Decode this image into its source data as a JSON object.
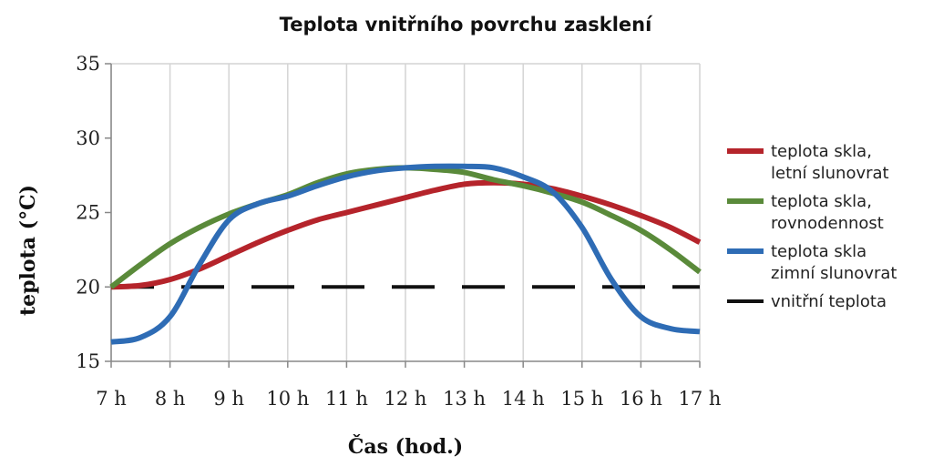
{
  "chart_data": {
    "type": "line",
    "title": "Teplota vnitřního povrchu zasklení",
    "xlabel": "Čas (hod.)",
    "ylabel": "teplota (°C)",
    "categories": [
      "7 h",
      "8 h",
      "9 h",
      "10 h",
      "11 h",
      "12 h",
      "13 h",
      "14 h",
      "15 h",
      "16 h",
      "17 h"
    ],
    "x": [
      7,
      8,
      9,
      10,
      11,
      12,
      13,
      14,
      15,
      16,
      17
    ],
    "yticks": [
      "15",
      "20",
      "25",
      "30",
      "35"
    ],
    "ylim": [
      15,
      35
    ],
    "grid": "vertical",
    "legend_position": "right",
    "series": [
      {
        "name_lines": [
          "teplota skla,",
          "letní slunovrat"
        ],
        "color": "#b5242b",
        "dashed": false,
        "x": [
          7,
          7.5,
          8,
          8.5,
          9,
          9.5,
          10,
          10.5,
          11,
          11.5,
          12,
          12.5,
          13,
          13.5,
          14,
          14.5,
          15,
          15.5,
          16,
          16.5,
          17
        ],
        "values": [
          20.0,
          20.1,
          20.5,
          21.2,
          22.1,
          23.0,
          23.8,
          24.5,
          25.0,
          25.5,
          26.0,
          26.5,
          26.9,
          27.0,
          26.9,
          26.6,
          26.1,
          25.5,
          24.8,
          24.0,
          23.0
        ]
      },
      {
        "name_lines": [
          "teplota skla,",
          "rovnodennost"
        ],
        "color": "#5a8a3a",
        "dashed": false,
        "x": [
          7,
          7.5,
          8,
          8.5,
          9,
          9.5,
          10,
          10.5,
          11,
          11.5,
          12,
          12.5,
          13,
          13.5,
          14,
          14.5,
          15,
          15.5,
          16,
          16.5,
          17
        ],
        "values": [
          20.0,
          21.5,
          22.9,
          24.0,
          24.9,
          25.6,
          26.2,
          27.0,
          27.6,
          27.9,
          28.0,
          27.9,
          27.7,
          27.2,
          26.8,
          26.3,
          25.7,
          24.8,
          23.8,
          22.5,
          21.0
        ]
      },
      {
        "name_lines": [
          "teplota skla",
          "zimní slunovrat"
        ],
        "color": "#2e6cb5",
        "dashed": false,
        "x": [
          7,
          7.5,
          8,
          8.5,
          9,
          9.5,
          10,
          10.5,
          11,
          11.5,
          12,
          12.5,
          13,
          13.5,
          14,
          14.5,
          15,
          15.5,
          16,
          16.5,
          17
        ],
        "values": [
          16.3,
          16.6,
          18.0,
          21.5,
          24.5,
          25.6,
          26.1,
          26.8,
          27.4,
          27.8,
          28.0,
          28.1,
          28.1,
          28.0,
          27.4,
          26.4,
          24.0,
          20.5,
          18.0,
          17.2,
          17.0
        ]
      },
      {
        "name_lines": [
          "vnitřní teplota"
        ],
        "color": "#111111",
        "dashed": true,
        "x": [
          7,
          17
        ],
        "values": [
          20,
          20
        ]
      }
    ]
  }
}
